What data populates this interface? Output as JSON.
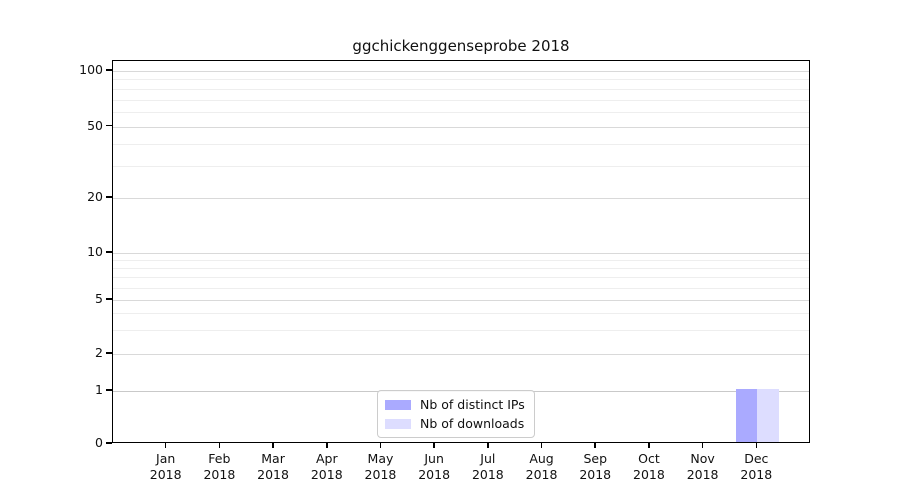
{
  "chart_data": {
    "type": "bar",
    "title": "ggchickenggenseprobe 2018",
    "categories": [
      "Jan 2018",
      "Feb 2018",
      "Mar 2018",
      "Apr 2018",
      "May 2018",
      "Jun 2018",
      "Jul 2018",
      "Aug 2018",
      "Sep 2018",
      "Oct 2018",
      "Nov 2018",
      "Dec 2018"
    ],
    "series": [
      {
        "name": "Nb of distinct IPs",
        "color": "#aaaaff",
        "values": [
          0,
          0,
          0,
          0,
          0,
          0,
          0,
          0,
          0,
          0,
          0,
          1
        ]
      },
      {
        "name": "Nb of downloads",
        "color": "#ddddff",
        "values": [
          0,
          0,
          0,
          0,
          0,
          0,
          0,
          0,
          0,
          0,
          0,
          1
        ]
      }
    ],
    "xlabel": "",
    "ylabel": "",
    "yscale": "symlog",
    "ylim": [
      0,
      113
    ],
    "yticks": [
      0,
      1,
      2,
      5,
      10,
      20,
      50,
      100
    ],
    "yticks_minor": [
      3,
      4,
      6,
      7,
      8,
      9,
      30,
      40,
      60,
      70,
      80,
      90
    ],
    "grid": "horizontal",
    "legend_position": "lower center"
  },
  "colors": {
    "bar_distinct_ips": "#aaaaff",
    "bar_downloads": "#ddddff",
    "grid_major": "#d9d9d9",
    "grid_minor": "#eeeeee",
    "axis": "#000000",
    "legend_border": "#cccccc",
    "background": "#ffffff"
  }
}
